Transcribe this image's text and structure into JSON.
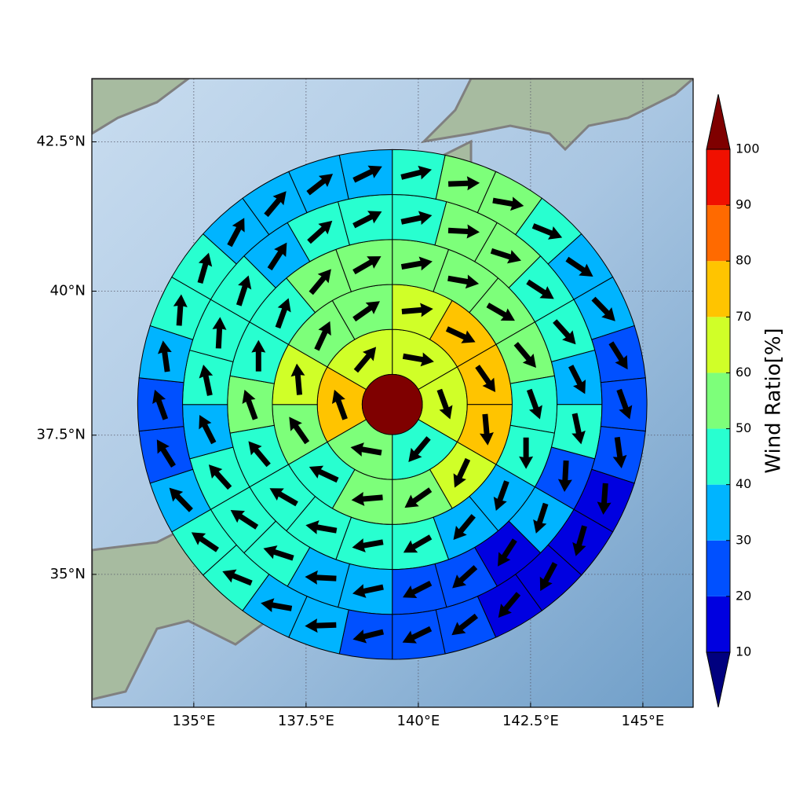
{
  "chart_data": {
    "type": "polar_grid_map",
    "projection": "mercator",
    "xlim": [
      132.73,
      146.12
    ],
    "ylim": [
      32.54,
      43.53
    ],
    "xticks": [
      {
        "value": 135,
        "label": "135°E"
      },
      {
        "value": 137.5,
        "label": "137.5°E"
      },
      {
        "value": 140,
        "label": "140°E"
      },
      {
        "value": 142.5,
        "label": "142.5°E"
      },
      {
        "value": 145,
        "label": "145°E"
      }
    ],
    "yticks": [
      {
        "value": 35,
        "label": "35°N"
      },
      {
        "value": 37.5,
        "label": "37.5°N"
      },
      {
        "value": 40,
        "label": "40°N"
      },
      {
        "value": 42.5,
        "label": "42.5°N"
      }
    ],
    "grid": true,
    "center": [
      139.42,
      38.04
    ],
    "ring_radii_deg": [
      0.67,
      1.67,
      2.67,
      3.67,
      4.67,
      5.67
    ],
    "center_value": 105,
    "rings": [
      {
        "values": [
          62,
          65,
          45,
          55,
          75,
          65
        ],
        "directions": [
          100,
          160,
          220,
          280,
          340,
          40
        ]
      },
      {
        "values": [
          65,
          75,
          75,
          72,
          65,
          52,
          55,
          45,
          55,
          65,
          58,
          55
        ],
        "directions": [
          85,
          115,
          145,
          175,
          205,
          235,
          265,
          295,
          325,
          355,
          25,
          55
        ]
      },
      {
        "values": [
          55,
          55,
          55,
          55,
          45,
          45,
          35,
          35,
          45,
          45,
          45,
          45,
          45,
          55,
          45,
          45,
          55,
          55
        ],
        "directions": [
          80,
          100,
          120,
          140,
          160,
          180,
          200,
          220,
          240,
          260,
          280,
          300,
          320,
          340,
          0,
          20,
          40,
          60
        ]
      },
      {
        "values": [
          45,
          55,
          55,
          45,
          45,
          35,
          45,
          25,
          35,
          15,
          25,
          25,
          35,
          35,
          45,
          45,
          45,
          35,
          45,
          45,
          45,
          35,
          45,
          45
        ],
        "directions": [
          78,
          93,
          108,
          123,
          138,
          153,
          168,
          183,
          198,
          213,
          228,
          243,
          258,
          273,
          288,
          303,
          318,
          333,
          348,
          3,
          18,
          33,
          48,
          63
        ]
      },
      {
        "values": [
          45,
          55,
          55,
          45,
          35,
          35,
          25,
          25,
          25,
          15,
          15,
          15,
          15,
          25,
          25,
          25,
          35,
          35,
          45,
          45,
          35,
          25,
          25,
          35,
          45,
          45,
          35,
          35,
          35,
          35
        ],
        "directions": [
          76,
          88,
          100,
          112,
          124,
          136,
          148,
          160,
          172,
          184,
          196,
          208,
          220,
          232,
          244,
          256,
          268,
          280,
          292,
          304,
          316,
          328,
          340,
          352,
          4,
          16,
          28,
          40,
          52,
          64
        ]
      }
    ],
    "colorbar": {
      "label": "Wind Ratio[%]",
      "levels": [
        10,
        20,
        30,
        40,
        50,
        60,
        70,
        80,
        90,
        100
      ],
      "colors": [
        "#00007f",
        "#0000e0",
        "#0050ff",
        "#00b4ff",
        "#28ffd0",
        "#7dff7a",
        "#d0ff28",
        "#ffc400",
        "#ff6a00",
        "#f01000",
        "#7f0000"
      ]
    }
  }
}
